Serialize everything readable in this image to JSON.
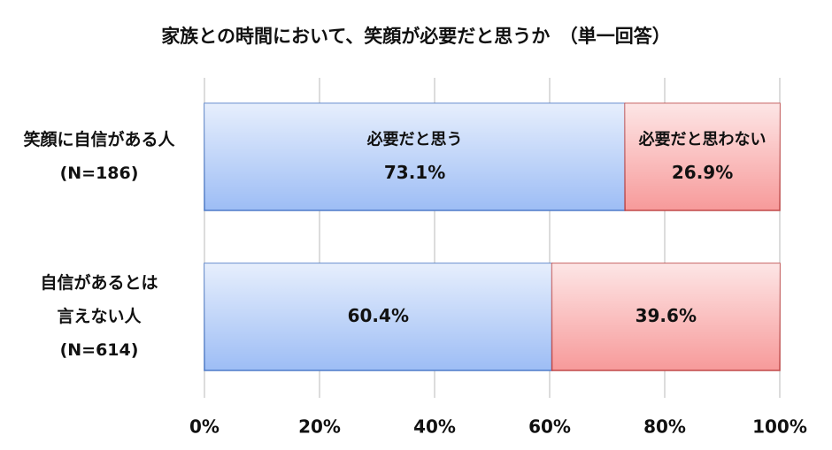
{
  "chart_data": {
    "type": "stacked-bar-horizontal",
    "title": "家族との時間において、笑顔が必要だと思うか　（単一回答）",
    "categories": [
      [
        "笑顔に自信がある人",
        "(N=186)"
      ],
      [
        "自信があるとは",
        "言えない人",
        "(N=614)"
      ]
    ],
    "series": [
      {
        "name": "必要だと思う",
        "color": "#9dbdf5",
        "border": "#4f7cc8",
        "values": [
          73.1,
          60.4
        ],
        "value_labels": [
          "73.1%",
          "60.4%"
        ]
      },
      {
        "name": "必要だと思わない",
        "color": "#f79a9a",
        "border": "#c04848",
        "values": [
          26.9,
          39.6
        ],
        "value_labels": [
          "26.9%",
          "39.6%"
        ]
      }
    ],
    "xlim": [
      0,
      100
    ],
    "xticks": [
      {
        "value": 0,
        "label": "0%"
      },
      {
        "value": 20,
        "label": "20%"
      },
      {
        "value": 40,
        "label": "40%"
      },
      {
        "value": 60,
        "label": "60%"
      },
      {
        "value": 80,
        "label": "80%"
      },
      {
        "value": 100,
        "label": "100%"
      }
    ],
    "grid": true
  }
}
